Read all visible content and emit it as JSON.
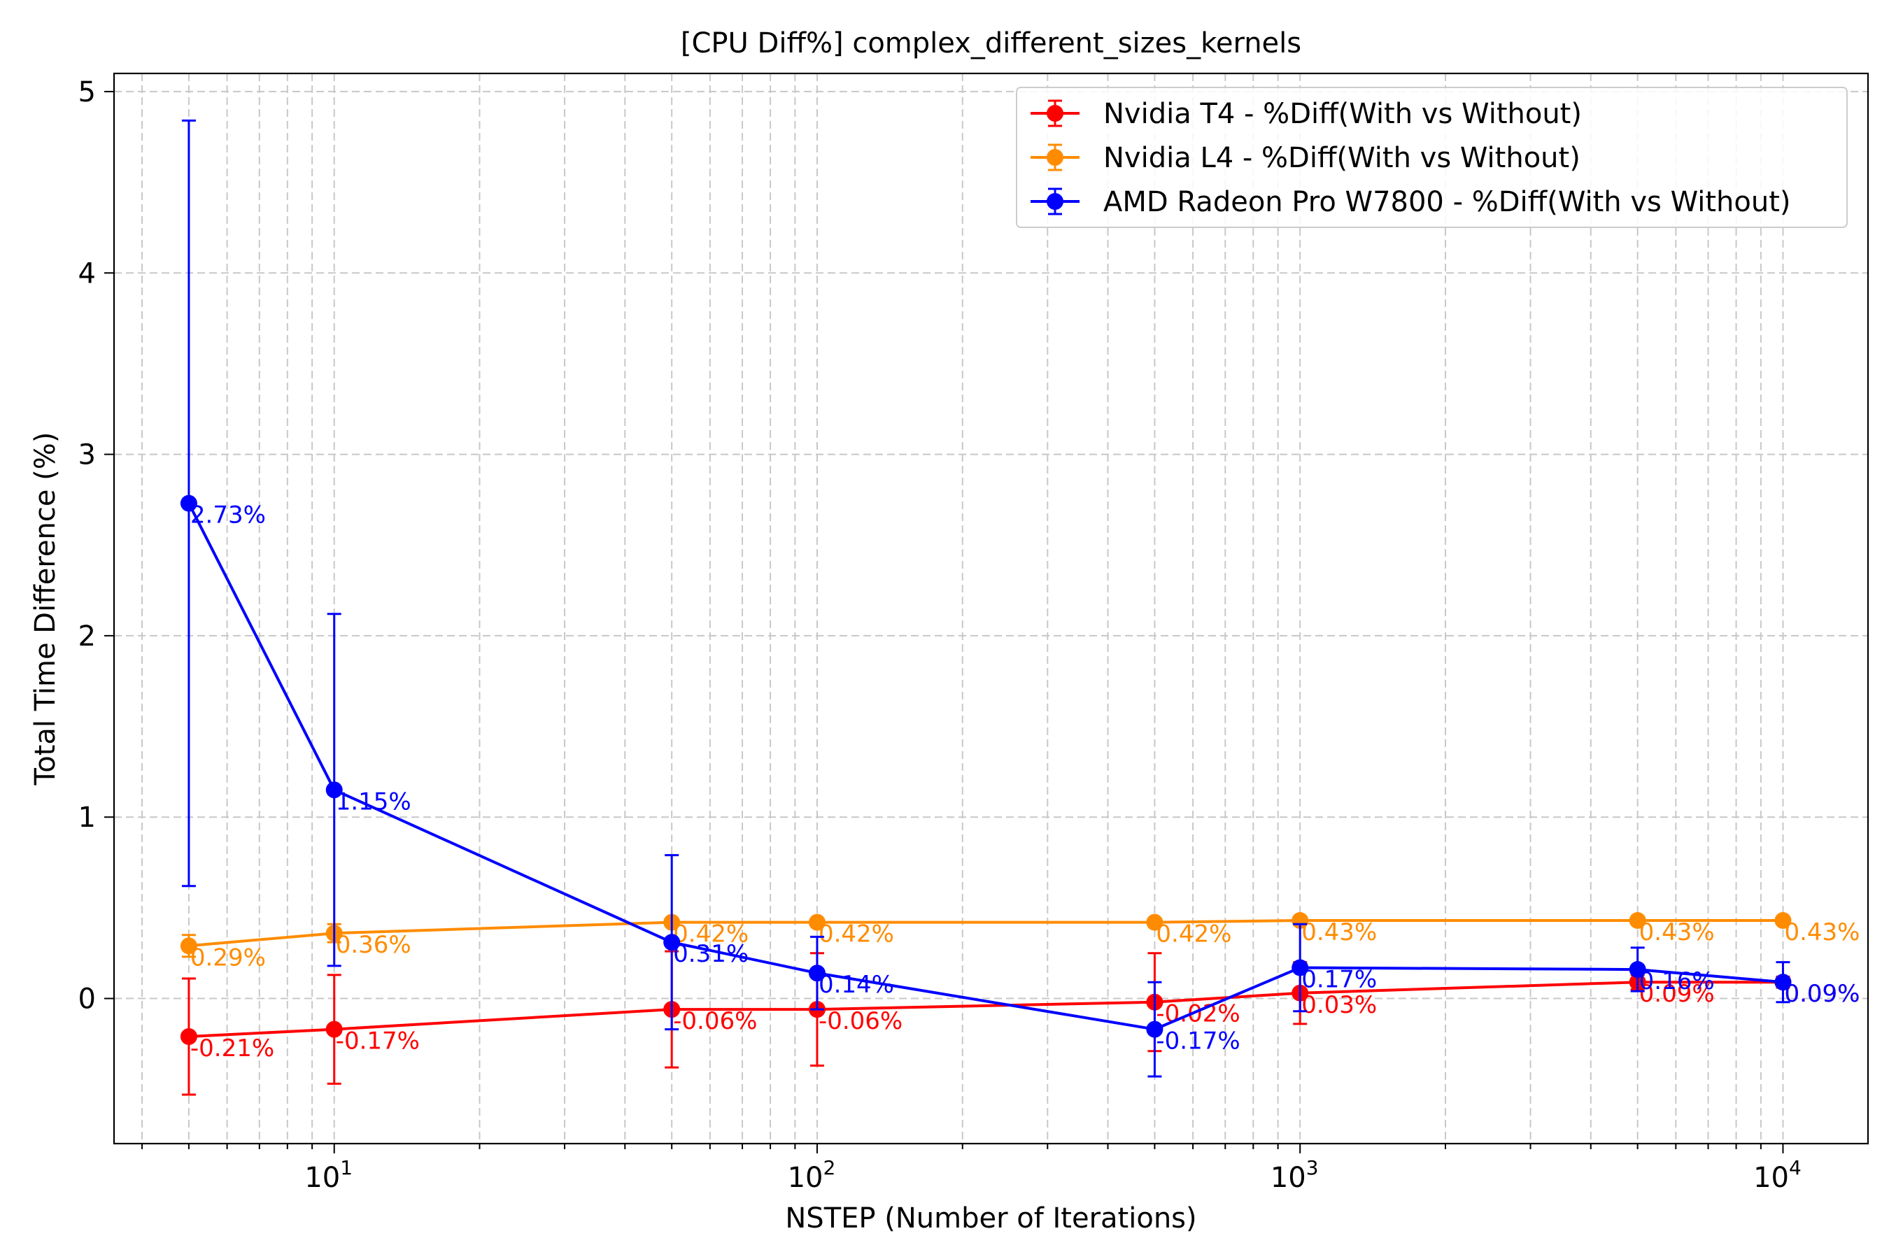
{
  "chart_data": {
    "type": "line",
    "title": "[CPU Diff%] complex_different_sizes_kernels",
    "xlabel": "NSTEP (Number of Iterations)",
    "ylabel": "Total Time Difference (%)",
    "x_scale": "log",
    "xlim": [
      3.5,
      15000
    ],
    "ylim": [
      -0.8,
      5.1
    ],
    "x": [
      5,
      10,
      50,
      100,
      500,
      1000,
      5000,
      10000
    ],
    "x_ticks": [
      {
        "value": 10,
        "base": "10",
        "exp": "1"
      },
      {
        "value": 100,
        "base": "10",
        "exp": "2"
      },
      {
        "value": 1000,
        "base": "10",
        "exp": "3"
      },
      {
        "value": 10000,
        "base": "10",
        "exp": "4"
      }
    ],
    "y_ticks": [
      0,
      1,
      2,
      3,
      4,
      5
    ],
    "y_tick_labels": [
      "0",
      "1",
      "2",
      "3",
      "4",
      "5"
    ],
    "grid": true,
    "legend_position": "top-right",
    "series": [
      {
        "name": "Nvidia T4 - %Diff(With vs Without)",
        "color": "#ff0000",
        "values": [
          -0.21,
          -0.17,
          -0.06,
          -0.06,
          -0.02,
          0.03,
          0.09,
          0.09
        ],
        "errors": [
          0.32,
          0.3,
          0.32,
          0.31,
          0.27,
          0.17,
          0.04,
          0.03
        ],
        "labels": [
          "-0.21%",
          "-0.17%",
          "-0.06%",
          "-0.06%",
          "-0.02%",
          "0.03%",
          "0.09%",
          "0.09%"
        ]
      },
      {
        "name": "Nvidia L4 - %Diff(With vs Without)",
        "color": "#ff8c00",
        "values": [
          0.29,
          0.36,
          0.42,
          0.42,
          0.42,
          0.43,
          0.43,
          0.43
        ],
        "errors": [
          0.06,
          0.05,
          0.02,
          0.02,
          0.02,
          0.01,
          0.01,
          0.01
        ],
        "labels": [
          "0.29%",
          "0.36%",
          "0.42%",
          "0.42%",
          "0.42%",
          "0.43%",
          "0.43%",
          "0.43%"
        ]
      },
      {
        "name": "AMD Radeon Pro W7800 - %Diff(With vs Without)",
        "color": "#0000ff",
        "values": [
          2.73,
          1.15,
          0.31,
          0.14,
          -0.17,
          0.17,
          0.16,
          0.09
        ],
        "errors": [
          2.11,
          0.97,
          0.48,
          0.2,
          0.26,
          0.24,
          0.12,
          0.11
        ],
        "labels": [
          "2.73%",
          "1.15%",
          "0.31%",
          "0.14%",
          "-0.17%",
          "0.17%",
          "0.16%",
          "0.09%"
        ]
      }
    ]
  }
}
